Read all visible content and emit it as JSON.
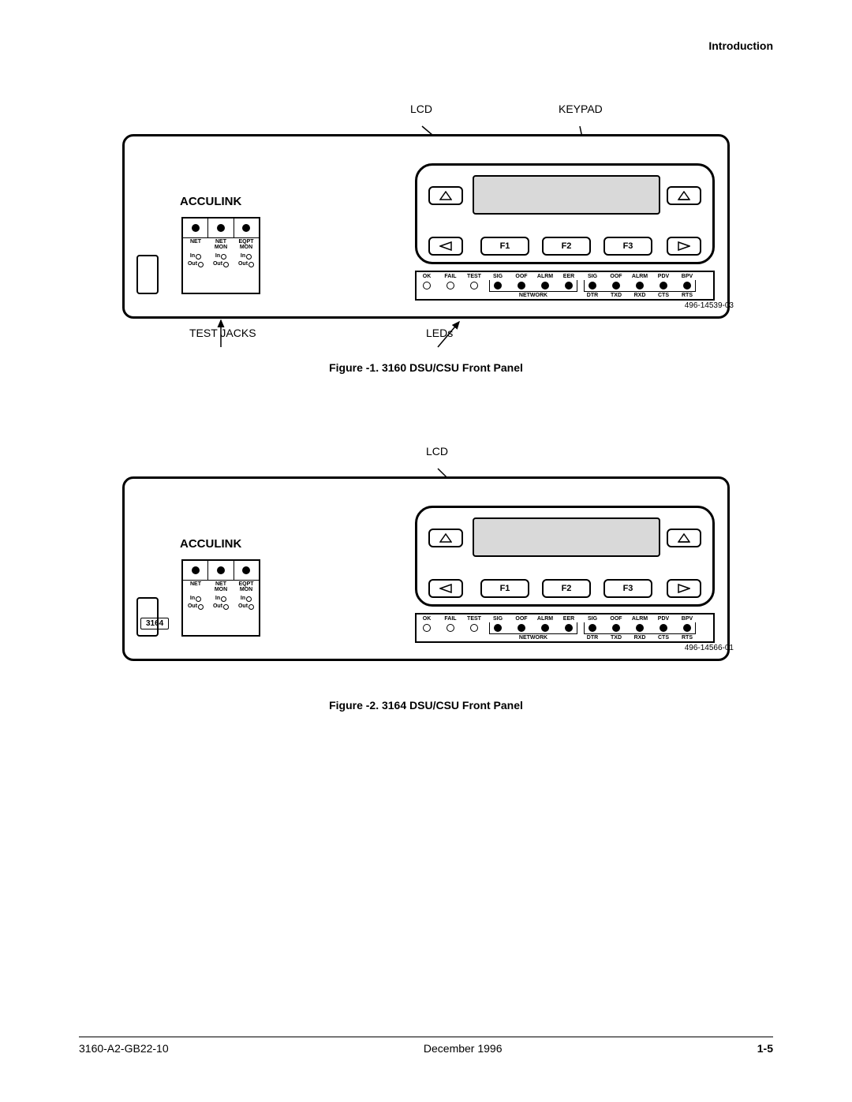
{
  "page": {
    "section_header": "Introduction",
    "footer_left": "3160-A2-GB22-10",
    "footer_center": "December 1996",
    "footer_right": "1-5"
  },
  "figure1": {
    "caption": "Figure -1.  3160 DSU/CSU Front Panel",
    "callout_lcd": "LCD",
    "callout_keypad": "KEYPAD",
    "callout_testjacks": "TEST JACKS",
    "callout_leds": "LEDs",
    "drawing_number": "496-14539-03"
  },
  "figure2": {
    "caption": "Figure -2.  3164 DSU/CSU Front Panel",
    "callout_lcd": "LCD",
    "drawing_number": "496-14566-01",
    "model": "3164"
  },
  "panel": {
    "brand": "ACCULINK",
    "test_jack_cols": [
      "NET",
      "NET MON",
      "EQPT MON"
    ],
    "io_in": "In",
    "io_out": "Out",
    "fkeys": [
      "F1",
      "F2",
      "F3"
    ],
    "led_labels": [
      "OK",
      "FAIL",
      "TEST",
      "SIG",
      "OOF",
      "ALRM",
      "EER",
      "SIG",
      "OOF",
      "ALRM",
      "PDV",
      "BPV"
    ],
    "led_filled": [
      false,
      false,
      false,
      true,
      true,
      true,
      true,
      true,
      true,
      true,
      true,
      true
    ],
    "group_network": "NETWORK",
    "sub_labels": [
      "DTR",
      "TXD",
      "RXD",
      "CTS",
      "RTS"
    ]
  }
}
